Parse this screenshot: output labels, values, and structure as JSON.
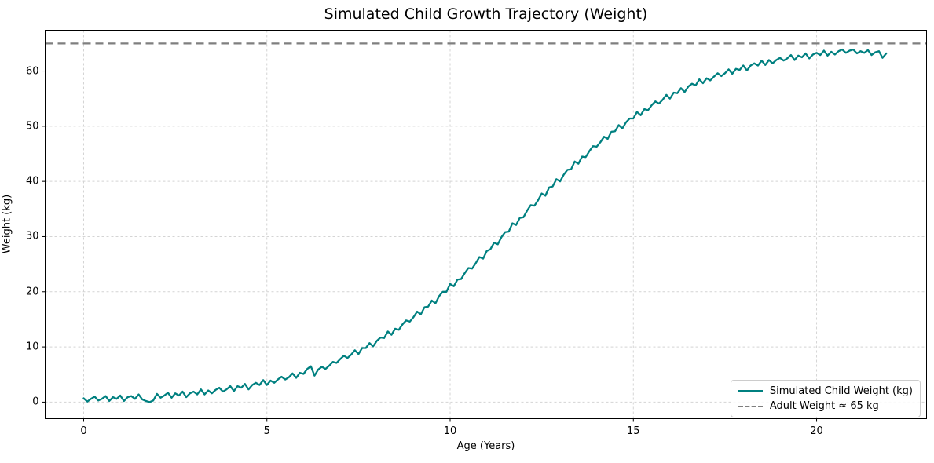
{
  "figure": {
    "background": "#ffffff"
  },
  "chart_data": {
    "type": "line",
    "title": "Simulated Child Growth Trajectory (Weight)",
    "xlabel": "Age (Years)",
    "ylabel": "Weight (kg)",
    "xlim": [
      -1.05,
      23.0
    ],
    "ylim": [
      -3.0,
      67.4
    ],
    "xticks": [
      0,
      5,
      10,
      15,
      20
    ],
    "yticks": [
      0,
      10,
      20,
      30,
      40,
      50,
      60
    ],
    "grid": true,
    "grid_color": "#d4d4d4",
    "grid_style": "dashed",
    "spine_color": "#000000",
    "legend_position": "lower right",
    "series": [
      {
        "name": "Simulated Child Weight (kg)",
        "type": "line",
        "color": "#008080",
        "linestyle": "solid",
        "linewidth": 2.3,
        "x_start": 0,
        "x_step": 0.1,
        "values": [
          0.7,
          0.1,
          0.6,
          1.0,
          0.3,
          0.6,
          1.1,
          0.2,
          0.9,
          0.6,
          1.2,
          0.2,
          0.9,
          1.1,
          0.6,
          1.4,
          0.5,
          0.2,
          0.0,
          0.3,
          1.5,
          0.8,
          1.2,
          1.7,
          0.8,
          1.6,
          1.2,
          1.9,
          0.9,
          1.6,
          1.9,
          1.4,
          2.3,
          1.4,
          2.1,
          1.6,
          2.2,
          2.6,
          1.9,
          2.3,
          2.9,
          2.0,
          2.9,
          2.6,
          3.3,
          2.3,
          3.1,
          3.5,
          3.1,
          4.0,
          3.1,
          3.9,
          3.5,
          4.1,
          4.6,
          4.1,
          4.5,
          5.2,
          4.4,
          5.3,
          5.1,
          6.0,
          6.5,
          4.8,
          5.9,
          6.4,
          6.0,
          6.6,
          7.3,
          7.1,
          7.8,
          8.4,
          8.0,
          8.6,
          9.4,
          8.7,
          9.8,
          9.8,
          10.7,
          10.1,
          11.1,
          11.7,
          11.6,
          12.8,
          12.2,
          13.3,
          13.1,
          14.1,
          14.8,
          14.6,
          15.4,
          16.4,
          15.9,
          17.2,
          17.3,
          18.4,
          17.9,
          19.2,
          20.0,
          20.0,
          21.4,
          21.0,
          22.2,
          22.3,
          23.4,
          24.3,
          24.2,
          25.2,
          26.3,
          26.0,
          27.4,
          27.7,
          28.9,
          28.6,
          29.9,
          30.8,
          30.9,
          32.4,
          32.1,
          33.4,
          33.5,
          34.7,
          35.7,
          35.6,
          36.6,
          37.8,
          37.4,
          38.9,
          39.1,
          40.4,
          40.0,
          41.2,
          42.1,
          42.2,
          43.6,
          43.2,
          44.5,
          44.4,
          45.5,
          46.4,
          46.3,
          47.1,
          48.1,
          47.7,
          49.0,
          49.1,
          50.2,
          49.6,
          50.7,
          51.4,
          51.4,
          52.6,
          52.0,
          53.1,
          52.9,
          53.8,
          54.5,
          54.1,
          54.8,
          55.7,
          55.0,
          56.1,
          56.0,
          56.9,
          56.2,
          57.2,
          57.7,
          57.4,
          58.5,
          57.8,
          58.7,
          58.3,
          59.0,
          59.6,
          59.1,
          59.6,
          60.3,
          59.5,
          60.4,
          60.2,
          61.0,
          60.1,
          61.0,
          61.4,
          61.0,
          61.9,
          61.1,
          62.0,
          61.4,
          62.0,
          62.4,
          61.9,
          62.3,
          62.9,
          62.0,
          62.8,
          62.5,
          63.2,
          62.3,
          63.0,
          63.3,
          62.9,
          63.7,
          62.8,
          63.5,
          63.0,
          63.6,
          63.9,
          63.3,
          63.7,
          63.9,
          63.2,
          63.6,
          63.3,
          63.8,
          62.9,
          63.4,
          63.6,
          62.4,
          63.2
        ]
      },
      {
        "name": "Adult Weight ≈ 65 kg",
        "type": "hline",
        "color": "#7f7f7f",
        "linestyle": "dashed",
        "linewidth": 2.2,
        "y": 65
      }
    ]
  }
}
